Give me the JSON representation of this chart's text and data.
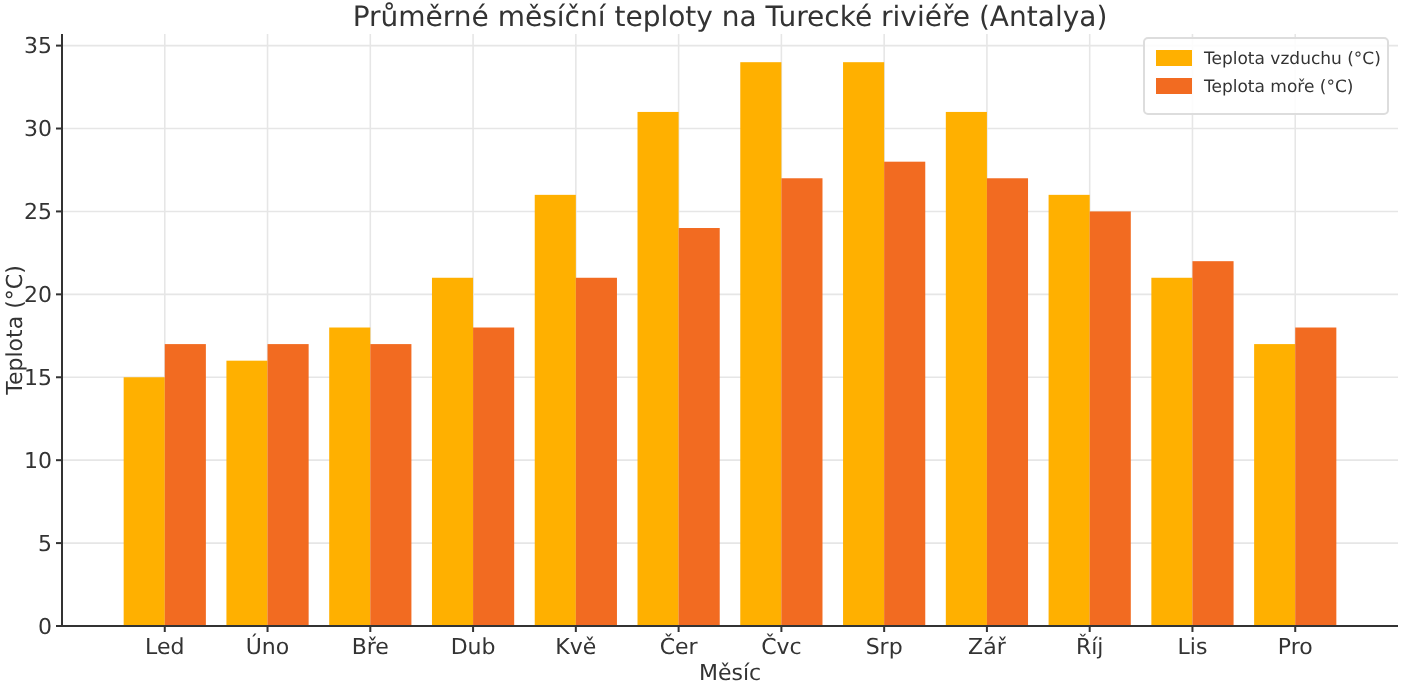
{
  "chart_data": {
    "type": "bar",
    "title": "Průměrné měsíční teploty na Turecké riviéře (Antalya)",
    "xlabel": "Měsíc",
    "ylabel": "Teplota (°C)",
    "categories": [
      "Led",
      "Úno",
      "Bře",
      "Dub",
      "Kvě",
      "Čer",
      "Čvc",
      "Srp",
      "Zář",
      "Říj",
      "Lis",
      "Pro"
    ],
    "series": [
      {
        "name": "Teplota vzduchu (°C)",
        "color": "#ffb000",
        "values": [
          15,
          16,
          18,
          21,
          26,
          31,
          34,
          34,
          31,
          26,
          21,
          17
        ]
      },
      {
        "name": "Teplota moře (°C)",
        "color": "#f26b21",
        "values": [
          17,
          17,
          17,
          18,
          21,
          24,
          27,
          28,
          27,
          25,
          22,
          18
        ]
      }
    ],
    "ylim": [
      0,
      35.7
    ],
    "yticks": [
      0,
      5,
      10,
      15,
      20,
      25,
      30,
      35
    ],
    "grid": true,
    "legend": "top right"
  }
}
